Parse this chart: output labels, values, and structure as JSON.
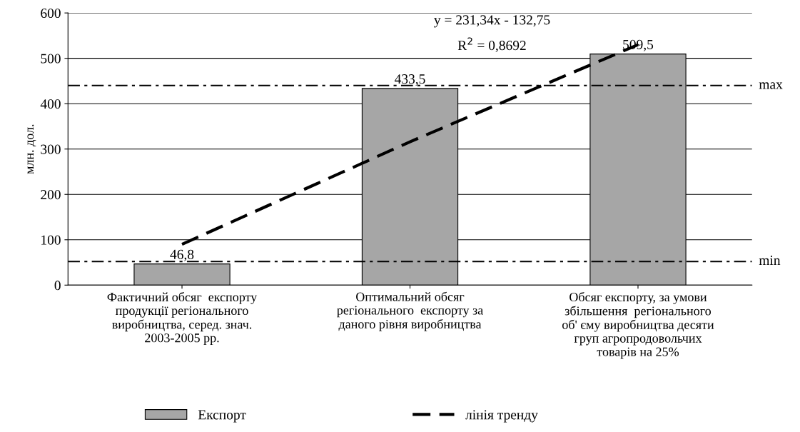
{
  "chart_data": {
    "type": "bar",
    "ylabel": "млн. дол.",
    "categories": [
      "Фактичний обсяг  експорту\nпродукції регіонального\nвиробництва, серед. знач.\n2003-2005 рр.",
      "Оптимальний обсяг\nрегіонального  експорту за\nданого рівня виробництва",
      "Обсяг експорту, за умови\nзбільшення  регіонального\nоб' єму виробництва десяти\nгруп агропродовольчих\nтоварів на 25%"
    ],
    "series": [
      {
        "name": "Експорт",
        "color": "#a6a6a6",
        "values": [
          46.8,
          433.5,
          509.5
        ],
        "value_labels": [
          "46,8",
          "433,5",
          "509,5"
        ]
      },
      {
        "name": "лінія тренду",
        "type": "line",
        "color": "#000000",
        "line_style": "dashed",
        "values": [
          90,
          316,
          530
        ]
      }
    ],
    "ylim": [
      0,
      600
    ],
    "yticks": [
      0,
      100,
      200,
      300,
      400,
      500,
      600
    ],
    "grid": "y",
    "legend": "bottom",
    "ref_lines": [
      {
        "axis": "y",
        "value": 440,
        "label": "max",
        "color": "#000000",
        "line_style": "dashdot"
      },
      {
        "axis": "y",
        "value": 52,
        "label": "min",
        "color": "#000000",
        "line_style": "dashdot"
      }
    ],
    "annotations": [
      "y = 231,34x - 132,75",
      "R$^{2}$ = 0,8692"
    ]
  }
}
